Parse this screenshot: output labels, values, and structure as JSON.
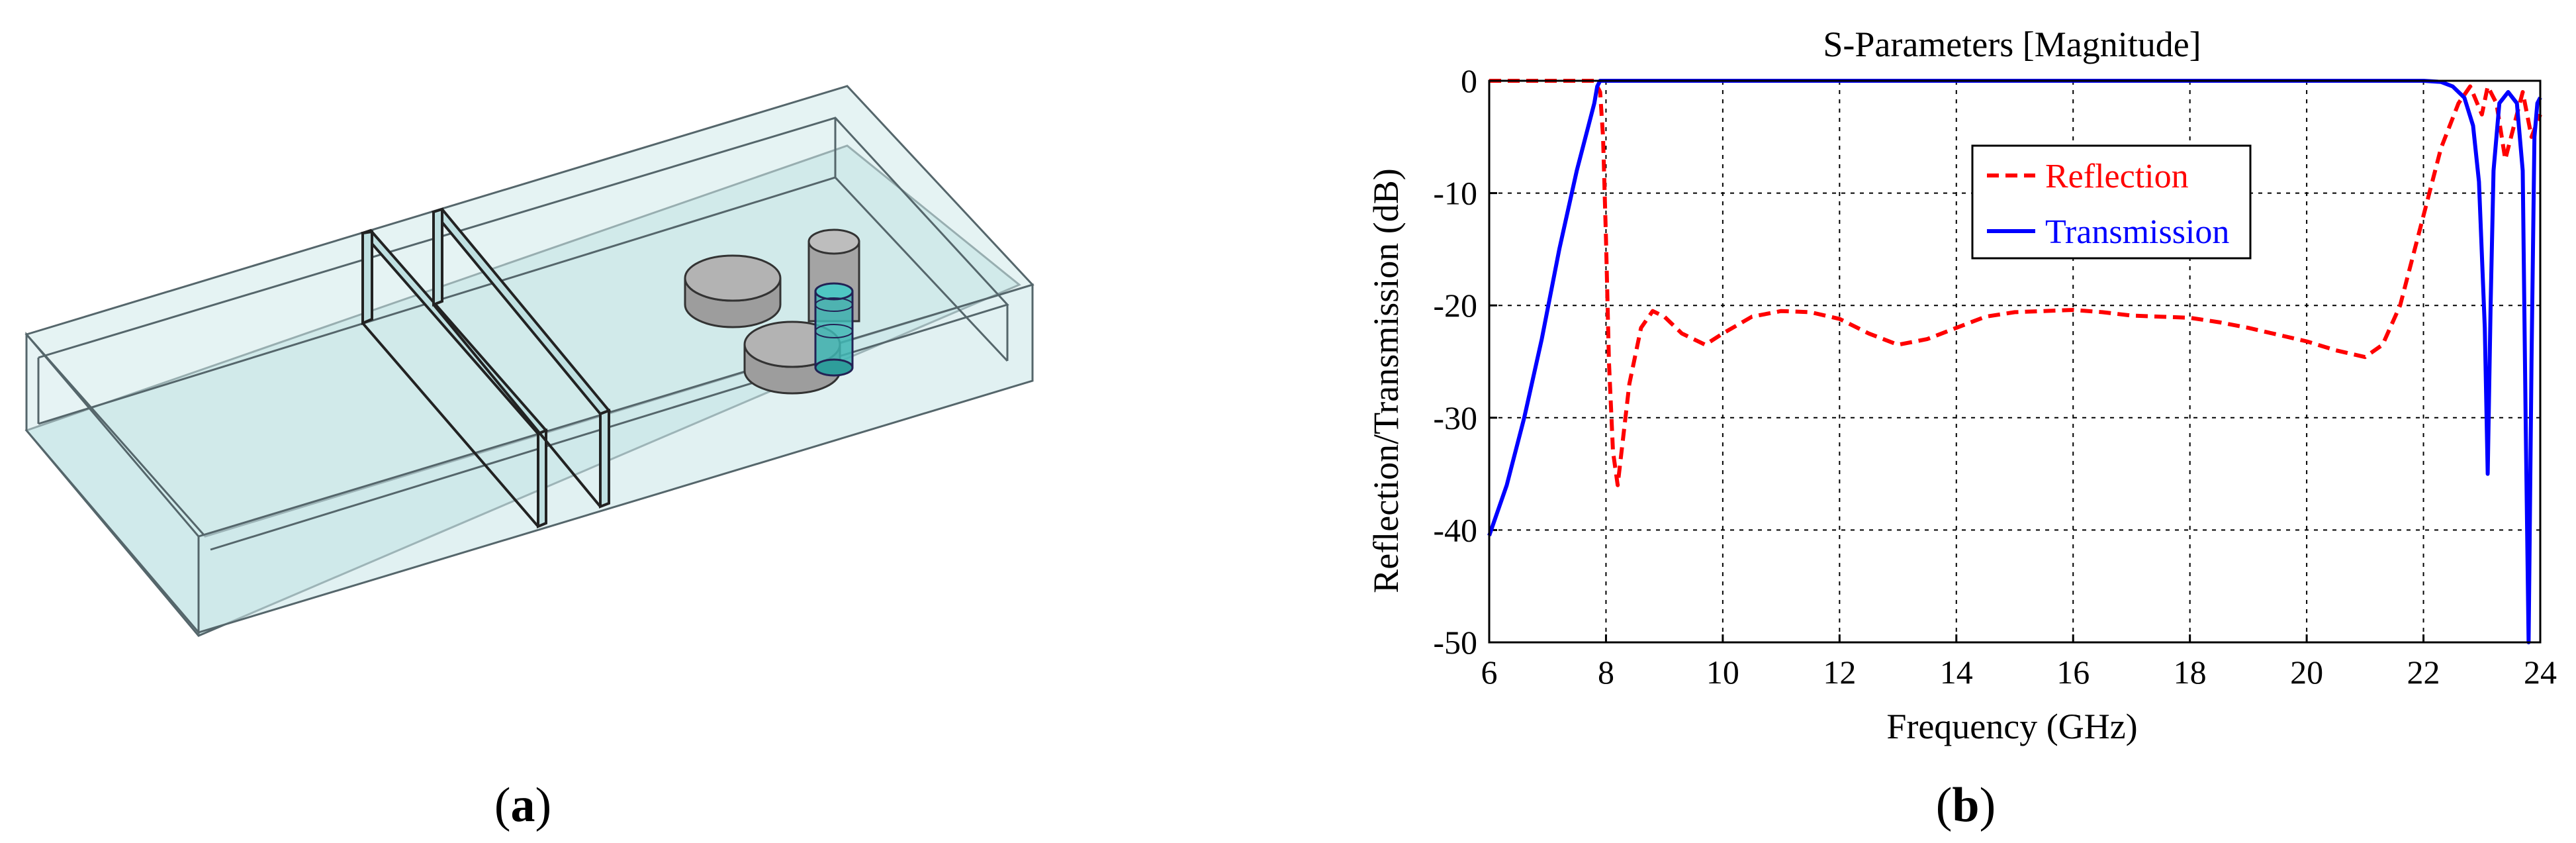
{
  "panel_a": {
    "label": "a",
    "colors": {
      "fill": "#cfe9ea",
      "edge": "#5a6e74",
      "post": "#3fb6b4",
      "disc": "#a7a7a7"
    }
  },
  "panel_b": {
    "label": "b"
  },
  "chart_data": {
    "type": "line",
    "title": "S-Parameters [Magnitude]",
    "xlabel": "Frequency (GHz)",
    "ylabel": "Reflection/Transmission (dB)",
    "xlim": [
      6,
      24
    ],
    "ylim": [
      -50,
      0
    ],
    "xticks": [
      6,
      8,
      10,
      12,
      14,
      16,
      18,
      20,
      22,
      24
    ],
    "yticks": [
      0,
      -10,
      -20,
      -30,
      -40,
      -50
    ],
    "grid": "dashed",
    "legend_position": "top-center",
    "series": [
      {
        "name": "Reflection",
        "color": "#ff0000",
        "style": "dashed",
        "x": [
          6,
          7,
          7.8,
          7.9,
          7.95,
          8.0,
          8.05,
          8.12,
          8.2,
          8.4,
          8.6,
          8.8,
          9.0,
          9.3,
          9.7,
          10.0,
          10.5,
          11.0,
          11.5,
          12.0,
          12.5,
          13.0,
          13.5,
          14.0,
          14.5,
          15.0,
          15.5,
          16.0,
          16.5,
          17.0,
          17.5,
          18.0,
          18.5,
          19.0,
          19.5,
          20.0,
          20.5,
          21.0,
          21.3,
          21.6,
          22.0,
          22.3,
          22.6,
          22.8,
          23.0,
          23.1,
          23.25,
          23.4,
          23.55,
          23.7,
          23.85,
          24.0
        ],
        "y": [
          0,
          0,
          0,
          -1,
          -5,
          -14,
          -25,
          -33,
          -36,
          -27,
          -22,
          -20.5,
          -21,
          -22.5,
          -23.5,
          -22.5,
          -21,
          -20.5,
          -20.6,
          -21.2,
          -22.5,
          -23.5,
          -23,
          -22,
          -21,
          -20.6,
          -20.5,
          -20.4,
          -20.6,
          -20.9,
          -21,
          -21.1,
          -21.5,
          -22,
          -22.6,
          -23.2,
          -24,
          -24.6,
          -23.5,
          -20,
          -12,
          -6,
          -2,
          -0.5,
          -3,
          -0.5,
          -2,
          -7,
          -4,
          -1,
          -5,
          -3
        ]
      },
      {
        "name": "Transmission",
        "color": "#0000ff",
        "style": "solid",
        "x": [
          6,
          6.3,
          6.6,
          6.9,
          7.2,
          7.5,
          7.7,
          7.8,
          7.85,
          7.9,
          8.0,
          10,
          14,
          18,
          22,
          22.3,
          22.5,
          22.7,
          22.85,
          22.95,
          23.05,
          23.1,
          23.15,
          23.2,
          23.3,
          23.45,
          23.6,
          23.7,
          23.75,
          23.8,
          23.85,
          23.9,
          23.95,
          24.0
        ],
        "y": [
          -40.5,
          -36,
          -30,
          -23,
          -15,
          -8,
          -4,
          -2,
          -0.5,
          0,
          0,
          0,
          0,
          0,
          0,
          -0.1,
          -0.5,
          -1.5,
          -4,
          -9,
          -22,
          -35,
          -20,
          -8,
          -2,
          -1,
          -2,
          -8,
          -30,
          -50,
          -25,
          -5,
          -2,
          -1.5
        ]
      }
    ]
  }
}
